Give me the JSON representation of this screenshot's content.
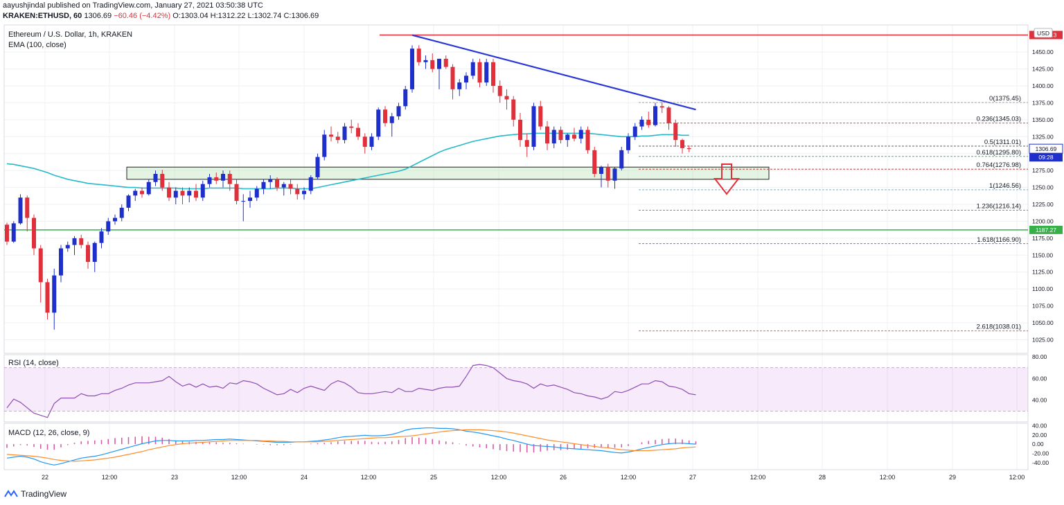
{
  "header": {
    "published_line": "aayushjindal published on TradingView.com, January 27, 2021 03:50:38 UTC",
    "symbol": "KRAKEN:ETHUSD, 60",
    "last": "1306.69",
    "change": "−60.46 (−4.42%)",
    "ohlc_o": "O:1303.04",
    "ohlc_h": "H:1312.22",
    "ohlc_l": "L:1302.74",
    "ohlc_c": "C:1306.69"
  },
  "main_pane": {
    "title": "Ethereum / U.S. Dollar, 1h, KRAKEN",
    "indicator": "EMA (100, close)",
    "currency_badge": "USD",
    "price_badge": "1306.69",
    "countdown_badge": "09:28",
    "resistance_label": "1475.13",
    "support_label": "1187.27"
  },
  "rsi_pane": {
    "title": "RSI (14, close)"
  },
  "macd_pane": {
    "title": "MACD (12, 26, close, 9)"
  },
  "footer": {
    "brand": "TradingView"
  },
  "colors": {
    "bull": "#1f2fc9",
    "bear": "#e0303b",
    "ema": "#26b9c8",
    "trendline": "#2a36d6",
    "resistance": "#e0303b",
    "support": "#38b04a",
    "rsi": "#8e4db3",
    "macd": "#2196f3",
    "signal": "#ff8c2a"
  },
  "chart_data": [
    {
      "type": "candlestick",
      "title": "Ethereum / U.S. Dollar, 1h, KRAKEN",
      "price_ticks": [
        1025,
        1050,
        1075,
        1100,
        1125,
        1150,
        1175,
        1200,
        1225,
        1250,
        1275,
        1300,
        1325,
        1350,
        1375,
        1400,
        1425,
        1450
      ],
      "ylim": [
        1005,
        1490
      ],
      "x_ticks": [
        "22",
        "12:00",
        "23",
        "12:00",
        "24",
        "12:00",
        "25",
        "12:00",
        "26",
        "12:00",
        "27",
        "12:00",
        "28",
        "12:00",
        "29",
        "12:00"
      ],
      "ohlc": [
        [
          1195,
          1198,
          1165,
          1170
        ],
        [
          1170,
          1200,
          1168,
          1197
        ],
        [
          1197,
          1240,
          1195,
          1235
        ],
        [
          1235,
          1238,
          1185,
          1205
        ],
        [
          1205,
          1210,
          1150,
          1160
        ],
        [
          1160,
          1165,
          1080,
          1110
        ],
        [
          1110,
          1115,
          1055,
          1065
        ],
        [
          1065,
          1130,
          1040,
          1120
        ],
        [
          1120,
          1165,
          1110,
          1160
        ],
        [
          1160,
          1170,
          1155,
          1165
        ],
        [
          1165,
          1178,
          1150,
          1175
        ],
        [
          1175,
          1180,
          1160,
          1165
        ],
        [
          1165,
          1170,
          1130,
          1140
        ],
        [
          1140,
          1170,
          1125,
          1168
        ],
        [
          1168,
          1190,
          1160,
          1185
        ],
        [
          1185,
          1205,
          1180,
          1200
        ],
        [
          1200,
          1210,
          1195,
          1205
        ],
        [
          1205,
          1225,
          1200,
          1220
        ],
        [
          1220,
          1240,
          1215,
          1238
        ],
        [
          1238,
          1248,
          1230,
          1245
        ],
        [
          1245,
          1250,
          1235,
          1240
        ],
        [
          1240,
          1262,
          1238,
          1258
        ],
        [
          1258,
          1275,
          1252,
          1270
        ],
        [
          1270,
          1276,
          1245,
          1250
        ],
        [
          1250,
          1258,
          1230,
          1235
        ],
        [
          1235,
          1250,
          1225,
          1245
        ],
        [
          1245,
          1250,
          1225,
          1238
        ],
        [
          1238,
          1250,
          1228,
          1245
        ],
        [
          1245,
          1255,
          1230,
          1235
        ],
        [
          1235,
          1260,
          1230,
          1255
        ],
        [
          1255,
          1270,
          1250,
          1265
        ],
        [
          1265,
          1272,
          1255,
          1260
        ],
        [
          1260,
          1275,
          1250,
          1270
        ],
        [
          1270,
          1275,
          1245,
          1255
        ],
        [
          1255,
          1262,
          1225,
          1230
        ],
        [
          1230,
          1240,
          1200,
          1230
        ],
        [
          1230,
          1245,
          1220,
          1235
        ],
        [
          1235,
          1252,
          1230,
          1248
        ],
        [
          1248,
          1262,
          1240,
          1258
        ],
        [
          1258,
          1268,
          1248,
          1262
        ],
        [
          1262,
          1265,
          1245,
          1250
        ],
        [
          1250,
          1258,
          1238,
          1255
        ],
        [
          1255,
          1262,
          1240,
          1248
        ],
        [
          1248,
          1255,
          1232,
          1240
        ],
        [
          1240,
          1250,
          1232,
          1245
        ],
        [
          1245,
          1268,
          1240,
          1265
        ],
        [
          1265,
          1300,
          1262,
          1295
        ],
        [
          1295,
          1335,
          1290,
          1328
        ],
        [
          1328,
          1340,
          1318,
          1325
        ],
        [
          1325,
          1332,
          1315,
          1320
        ],
        [
          1320,
          1345,
          1315,
          1340
        ],
        [
          1340,
          1350,
          1330,
          1338
        ],
        [
          1338,
          1345,
          1320,
          1325
        ],
        [
          1325,
          1330,
          1300,
          1310
        ],
        [
          1310,
          1330,
          1305,
          1325
        ],
        [
          1325,
          1368,
          1320,
          1365
        ],
        [
          1365,
          1370,
          1340,
          1345
        ],
        [
          1345,
          1360,
          1325,
          1355
        ],
        [
          1355,
          1375,
          1350,
          1370
        ],
        [
          1370,
          1400,
          1365,
          1395
        ],
        [
          1395,
          1460,
          1390,
          1455
        ],
        [
          1455,
          1460,
          1430,
          1435
        ],
        [
          1435,
          1445,
          1425,
          1438
        ],
        [
          1438,
          1448,
          1420,
          1425
        ],
        [
          1425,
          1440,
          1395,
          1440
        ],
        [
          1440,
          1445,
          1425,
          1428
        ],
        [
          1428,
          1432,
          1380,
          1395
        ],
        [
          1395,
          1410,
          1385,
          1405
        ],
        [
          1405,
          1420,
          1395,
          1415
        ],
        [
          1415,
          1440,
          1410,
          1435
        ],
        [
          1435,
          1440,
          1398,
          1405
        ],
        [
          1405,
          1440,
          1400,
          1435
        ],
        [
          1435,
          1440,
          1390,
          1400
        ],
        [
          1400,
          1408,
          1375,
          1385
        ],
        [
          1385,
          1395,
          1365,
          1380
        ],
        [
          1380,
          1385,
          1340,
          1350
        ],
        [
          1350,
          1360,
          1310,
          1320
        ],
        [
          1320,
          1330,
          1295,
          1310
        ],
        [
          1310,
          1375,
          1305,
          1370
        ],
        [
          1370,
          1378,
          1335,
          1340
        ],
        [
          1340,
          1348,
          1305,
          1315
        ],
        [
          1315,
          1340,
          1308,
          1335
        ],
        [
          1335,
          1340,
          1315,
          1320
        ],
        [
          1320,
          1330,
          1310,
          1328
        ],
        [
          1328,
          1338,
          1318,
          1322
        ],
        [
          1322,
          1340,
          1315,
          1335
        ],
        [
          1335,
          1340,
          1300,
          1305
        ],
        [
          1305,
          1310,
          1265,
          1270
        ],
        [
          1270,
          1282,
          1250,
          1280
        ],
        [
          1280,
          1285,
          1250,
          1260
        ],
        [
          1260,
          1280,
          1248,
          1278
        ],
        [
          1278,
          1310,
          1275,
          1305
        ],
        [
          1305,
          1330,
          1300,
          1325
        ],
        [
          1325,
          1345,
          1320,
          1340
        ],
        [
          1340,
          1355,
          1335,
          1350
        ],
        [
          1350,
          1362,
          1338,
          1342
        ],
        [
          1342,
          1375,
          1340,
          1370
        ],
        [
          1370,
          1376,
          1360,
          1368
        ],
        [
          1368,
          1370,
          1335,
          1345
        ],
        [
          1345,
          1350,
          1310,
          1320
        ],
        [
          1320,
          1322,
          1300,
          1308
        ],
        [
          1308,
          1312,
          1302,
          1306.69
        ]
      ],
      "ema_100": [
        1285,
        1284,
        1282,
        1280,
        1278,
        1275,
        1272,
        1268,
        1265,
        1262,
        1260,
        1258,
        1256,
        1255,
        1254,
        1253,
        1252,
        1251,
        1250,
        1250,
        1249,
        1249,
        1249,
        1249,
        1249,
        1249,
        1248,
        1248,
        1248,
        1248,
        1249,
        1249,
        1249,
        1249,
        1249,
        1248,
        1248,
        1248,
        1248,
        1248,
        1249,
        1249,
        1249,
        1248,
        1248,
        1248,
        1250,
        1252,
        1254,
        1256,
        1258,
        1260,
        1262,
        1264,
        1266,
        1268,
        1270,
        1272,
        1274,
        1277,
        1282,
        1287,
        1292,
        1297,
        1302,
        1306,
        1309,
        1312,
        1315,
        1318,
        1320,
        1322,
        1324,
        1326,
        1327,
        1328,
        1329,
        1329,
        1330,
        1330,
        1330,
        1330,
        1330,
        1330,
        1330,
        1330,
        1330,
        1329,
        1328,
        1327,
        1326,
        1325,
        1325,
        1325,
        1326,
        1326,
        1327,
        1328,
        1328,
        1328,
        1327,
        1327
      ],
      "levels": [
        {
          "label": "0(1375.45)",
          "value": 1375.45,
          "color": "#9e9e9e"
        },
        {
          "label": "0.236(1345.03)",
          "value": 1345.03,
          "color": "#d1342f"
        },
        {
          "label": "0.5(1311.01)",
          "value": 1311.01,
          "color": "#4a4a4a"
        },
        {
          "label": "0.618(1295.80)",
          "value": 1295.8,
          "color": "#38a86b"
        },
        {
          "label": "0.764(1276.98)",
          "value": 1276.98,
          "color": "#b22222"
        },
        {
          "label": "1(1246.56)",
          "value": 1246.56,
          "color": "#5aa9d6"
        },
        {
          "label": "1.236(1216.14)",
          "value": 1216.14,
          "color": "#9b3bb0"
        },
        {
          "label": "1.618(1166.90)",
          "value": 1166.9,
          "color": "#3949ab"
        },
        {
          "label": "2.618(1038.01)",
          "value": 1038.01,
          "color": "#d1342f"
        }
      ],
      "resistance": 1475.13,
      "support": 1187.27,
      "zone": [
        1262,
        1280
      ],
      "trendline": [
        [
          60,
          1475
        ],
        [
          102,
          1365
        ]
      ]
    },
    {
      "type": "line",
      "title": "RSI (14, close)",
      "ylim": [
        20,
        82
      ],
      "ticks": [
        40,
        60,
        80
      ],
      "bands": [
        30,
        70
      ],
      "values": [
        33,
        41,
        38,
        33,
        28,
        26,
        24,
        37,
        42,
        42,
        42,
        46,
        44,
        44,
        46,
        46,
        49,
        51,
        54,
        56,
        56,
        56,
        57,
        58,
        62,
        57,
        53,
        55,
        52,
        55,
        52,
        53,
        51,
        56,
        55,
        58,
        57,
        55,
        51,
        48,
        45,
        46,
        50,
        47,
        51,
        53,
        51,
        49,
        55,
        58,
        56,
        52,
        47,
        46,
        46,
        47,
        48,
        47,
        51,
        48,
        48,
        51,
        50,
        49,
        51,
        52,
        52,
        53,
        62,
        72,
        73,
        72,
        70,
        65,
        60,
        58,
        57,
        55,
        51,
        55,
        53,
        54,
        52,
        50,
        47,
        46,
        44,
        43,
        41,
        43,
        48,
        47,
        49,
        52,
        55,
        55,
        58,
        57,
        53,
        52,
        50,
        46,
        45
      ]
    },
    {
      "type": "line",
      "title": "MACD (12, 26, close, 9)",
      "ylim": [
        -55,
        45
      ],
      "ticks": [
        -40,
        -20,
        0,
        20,
        40
      ],
      "macd": [
        -30,
        -28,
        -26,
        -28,
        -32,
        -38,
        -42,
        -45,
        -42,
        -38,
        -34,
        -30,
        -28,
        -26,
        -23,
        -19,
        -15,
        -11,
        -7,
        -3,
        1,
        4,
        7,
        8,
        8,
        7,
        7,
        7,
        8,
        8,
        9,
        10,
        10,
        11,
        10,
        9,
        8,
        7,
        6,
        5,
        4,
        4,
        4,
        5,
        5,
        6,
        7,
        9,
        11,
        14,
        16,
        17,
        18,
        19,
        18,
        18,
        19,
        21,
        25,
        30,
        33,
        34,
        35,
        35,
        34,
        34,
        33,
        31,
        28,
        26,
        24,
        21,
        18,
        15,
        11,
        8,
        4,
        0,
        -3,
        -4,
        -5,
        -6,
        -8,
        -9,
        -10,
        -11,
        -12,
        -13,
        -14,
        -16,
        -18,
        -19,
        -17,
        -14,
        -10,
        -7,
        -4,
        -1,
        1,
        2,
        2,
        1,
        0
      ],
      "signal": [
        -22,
        -23,
        -24,
        -25,
        -26,
        -28,
        -30,
        -33,
        -35,
        -36,
        -37,
        -36,
        -35,
        -34,
        -32,
        -30,
        -28,
        -25,
        -22,
        -19,
        -16,
        -12,
        -9,
        -6,
        -3,
        -1,
        1,
        2,
        3,
        4,
        5,
        6,
        7,
        8,
        8,
        8,
        8,
        8,
        7,
        7,
        6,
        6,
        5,
        5,
        5,
        5,
        5,
        6,
        7,
        8,
        9,
        10,
        11,
        12,
        13,
        14,
        14,
        15,
        16,
        17,
        18,
        20,
        22,
        24,
        26,
        28,
        29,
        30,
        31,
        31,
        31,
        30,
        29,
        28,
        26,
        24,
        21,
        18,
        15,
        12,
        9,
        7,
        5,
        3,
        1,
        -1,
        -3,
        -5,
        -7,
        -8,
        -10,
        -12,
        -13,
        -14,
        -14,
        -14,
        -13,
        -12,
        -11,
        -10,
        -8,
        -7,
        -6
      ],
      "histogram_color_pos": "#c9238a",
      "histogram_color_neg": "#c9238a"
    }
  ]
}
